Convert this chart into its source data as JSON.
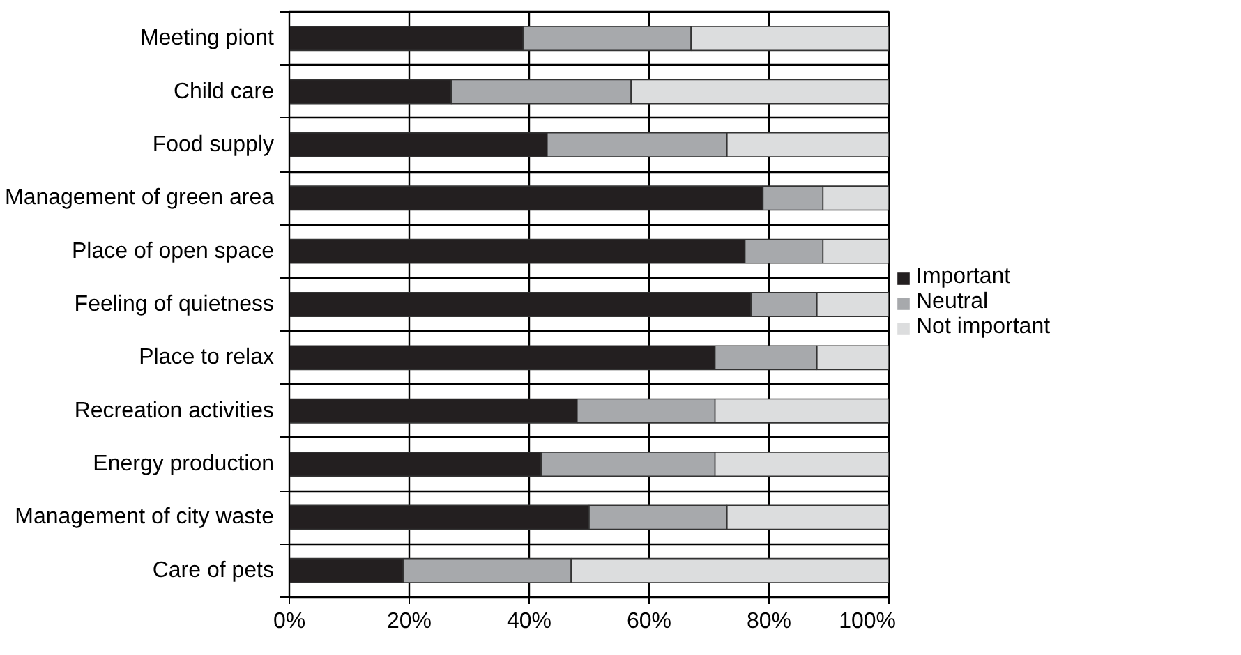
{
  "chart_data": {
    "type": "bar",
    "orientation": "horizontal",
    "stacked": true,
    "categories": [
      "Meeting piont",
      "Child care",
      "Food supply",
      "Management of green area",
      "Place of open space",
      "Feeling of quietness",
      "Place to relax",
      "Recreation activities",
      "Energy production",
      "Management of city waste",
      "Care of pets"
    ],
    "series": [
      {
        "name": "Important",
        "color": "#231f20",
        "values": [
          39,
          27,
          43,
          79,
          76,
          77,
          71,
          48,
          42,
          50,
          19
        ]
      },
      {
        "name": "Neutral",
        "color": "#a7a9ac",
        "values": [
          28,
          30,
          30,
          10,
          13,
          11,
          17,
          23,
          29,
          23,
          28
        ]
      },
      {
        "name": "Not important",
        "color": "#dcddde",
        "values": [
          33,
          43,
          27,
          11,
          11,
          12,
          12,
          29,
          29,
          27,
          53
        ]
      }
    ],
    "xlim": [
      0,
      100
    ],
    "xticks": [
      {
        "value": 0,
        "label": "0%"
      },
      {
        "value": 20,
        "label": "20%"
      },
      {
        "value": 40,
        "label": "40%"
      },
      {
        "value": 60,
        "label": "60%"
      },
      {
        "value": 80,
        "label": "80%"
      },
      {
        "value": 100,
        "label": "100%"
      }
    ],
    "grid": true,
    "legend": "right"
  }
}
